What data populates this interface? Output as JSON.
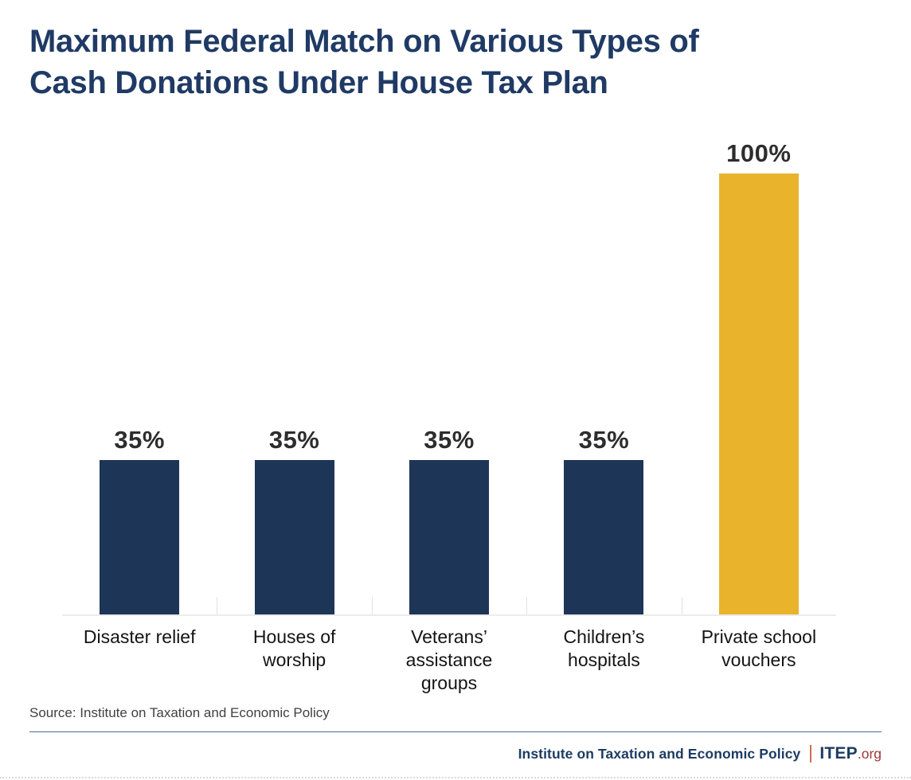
{
  "title_lines": [
    "Maximum Federal Match on Various Types of",
    "Cash Donations Under House Tax Plan"
  ],
  "chart_data": {
    "type": "bar",
    "title": "Maximum Federal Match on Various Types of Cash Donations Under House Tax Plan",
    "categories": [
      "Disaster relief",
      "Houses of worship",
      "Veterans’ assistance groups",
      "Children’s hospitals",
      "Private school vouchers"
    ],
    "values": [
      35,
      35,
      35,
      35,
      100
    ],
    "value_labels": [
      "35%",
      "35%",
      "35%",
      "35%",
      "100%"
    ],
    "bar_colors": [
      "#1d3557",
      "#1d3557",
      "#1d3557",
      "#1d3557",
      "#e9b32c"
    ],
    "xlabel": "",
    "ylabel": "",
    "ylim": [
      0,
      100
    ],
    "grid": false,
    "legend": false,
    "axis_color": "#ececec",
    "tick_positions_pct": [
      20,
      40,
      60,
      80
    ]
  },
  "source_note": "Source: Institute on Taxation and Economic Policy",
  "footer": {
    "org_name": "Institute on Taxation and Economic Policy",
    "brand": "ITEP",
    "brand_suffix": ".org"
  },
  "colors": {
    "title_navy": "#1f3a64",
    "bar_navy": "#1d3557",
    "bar_gold": "#e9b32c",
    "footer_navy": "#1d3c63",
    "footer_red": "#9e3639",
    "divider_red": "#c96f55"
  }
}
